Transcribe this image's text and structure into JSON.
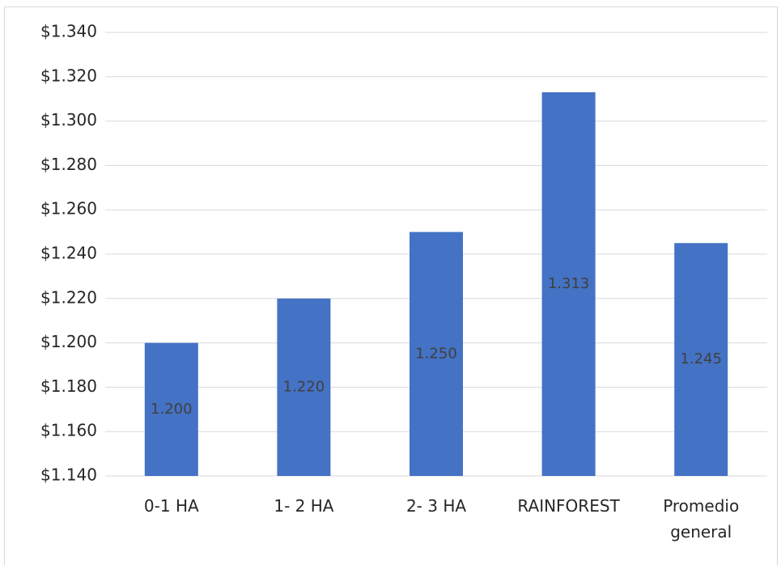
{
  "caption": "",
  "colors": {
    "bar": "#4472c4",
    "grid": "#d9d9d9",
    "text": "#262626"
  },
  "chart_data": {
    "type": "bar",
    "title": "",
    "xlabel": "",
    "ylabel": "",
    "categories": [
      [
        "0-1 HA"
      ],
      [
        "1- 2 HA"
      ],
      [
        "2- 3 HA"
      ],
      [
        "RAINFOREST"
      ],
      [
        "Promedio",
        "general"
      ]
    ],
    "values": [
      1200,
      1220,
      1250,
      1313,
      1245
    ],
    "data_labels": [
      "1.200",
      "1.220",
      "1.250",
      "1.313",
      "1.245"
    ],
    "ylim": [
      1140,
      1340
    ],
    "yticks": [
      1140,
      1160,
      1180,
      1200,
      1220,
      1240,
      1260,
      1280,
      1300,
      1320,
      1340
    ],
    "ytick_labels": [
      "$1.140",
      "$1.160",
      "$1.180",
      "$1.200",
      "$1.220",
      "$1.240",
      "$1.260",
      "$1.280",
      "$1.300",
      "$1.320",
      "$1.340"
    ],
    "grid": true,
    "legend": "none"
  }
}
